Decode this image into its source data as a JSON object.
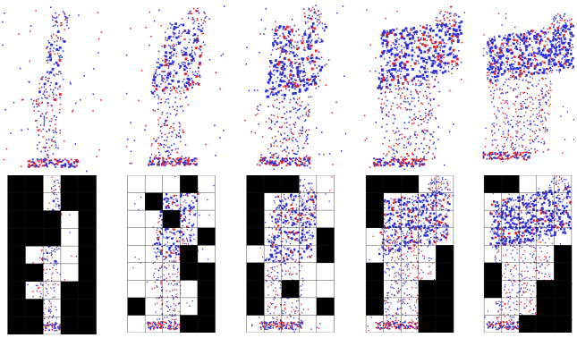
{
  "colors": {
    "background": "#ffffff",
    "blue_events": "#2a2fd6",
    "red_events": "#e2232a",
    "mask_cells": "#000000",
    "grid_lines": "#1c1c1c"
  },
  "rows": [
    {
      "id": "event-frames",
      "panels": [
        {
          "id": "frame-1"
        },
        {
          "id": "frame-2"
        },
        {
          "id": "frame-3"
        },
        {
          "id": "frame-4"
        },
        {
          "id": "frame-5"
        }
      ]
    },
    {
      "id": "masked-frames",
      "panels": [
        {
          "id": "masked-frame-1",
          "mask": [
            [
              0,
              0,
              1,
              0,
              0
            ],
            [
              0,
              0,
              1,
              0,
              0
            ],
            [
              0,
              0,
              0,
              1,
              0
            ],
            [
              0,
              0,
              0,
              1,
              0
            ],
            [
              0,
              1,
              1,
              1,
              0
            ],
            [
              0,
              0,
              1,
              1,
              0
            ],
            [
              0,
              1,
              1,
              0,
              0
            ],
            [
              0,
              0,
              1,
              0,
              0
            ],
            [
              0,
              0,
              1,
              0,
              0
            ]
          ]
        },
        {
          "id": "masked-frame-2",
          "mask": [
            [
              1,
              1,
              1,
              0,
              1
            ],
            [
              1,
              0,
              1,
              1,
              1
            ],
            [
              1,
              1,
              0,
              1,
              1
            ],
            [
              1,
              1,
              1,
              1,
              0
            ],
            [
              1,
              1,
              1,
              0,
              1
            ],
            [
              1,
              1,
              1,
              0,
              0
            ],
            [
              1,
              1,
              1,
              1,
              0
            ],
            [
              0,
              1,
              1,
              1,
              0
            ],
            [
              1,
              1,
              1,
              0,
              0
            ]
          ]
        },
        {
          "id": "masked-frame-3",
          "mask": [
            [
              0,
              0,
              0,
              1,
              1
            ],
            [
              0,
              1,
              1,
              1,
              1
            ],
            [
              0,
              1,
              1,
              1,
              1
            ],
            [
              0,
              1,
              1,
              1,
              0
            ],
            [
              1,
              1,
              1,
              1,
              0
            ],
            [
              0,
              1,
              1,
              1,
              1
            ],
            [
              0,
              1,
              0,
              1,
              1
            ],
            [
              0,
              1,
              1,
              1,
              0
            ],
            [
              1,
              1,
              1,
              1,
              1
            ]
          ]
        },
        {
          "id": "masked-frame-4",
          "mask": [
            [
              0,
              0,
              0,
              1,
              1
            ],
            [
              0,
              1,
              1,
              1,
              1
            ],
            [
              0,
              1,
              1,
              1,
              1
            ],
            [
              1,
              1,
              1,
              1,
              1
            ],
            [
              1,
              1,
              1,
              1,
              0
            ],
            [
              0,
              1,
              1,
              1,
              0
            ],
            [
              0,
              1,
              1,
              0,
              0
            ],
            [
              0,
              1,
              1,
              0,
              0
            ],
            [
              1,
              1,
              1,
              0,
              0
            ]
          ]
        },
        {
          "id": "masked-frame-5",
          "mask": [
            [
              0,
              0,
              1,
              1,
              1
            ],
            [
              1,
              1,
              1,
              1,
              1
            ],
            [
              1,
              1,
              1,
              1,
              1
            ],
            [
              1,
              1,
              1,
              1,
              1
            ],
            [
              1,
              1,
              1,
              1,
              0
            ],
            [
              0,
              1,
              1,
              1,
              0
            ],
            [
              0,
              1,
              1,
              0,
              0
            ],
            [
              1,
              1,
              1,
              0,
              0
            ],
            [
              1,
              1,
              0,
              0,
              0
            ]
          ]
        }
      ]
    }
  ]
}
